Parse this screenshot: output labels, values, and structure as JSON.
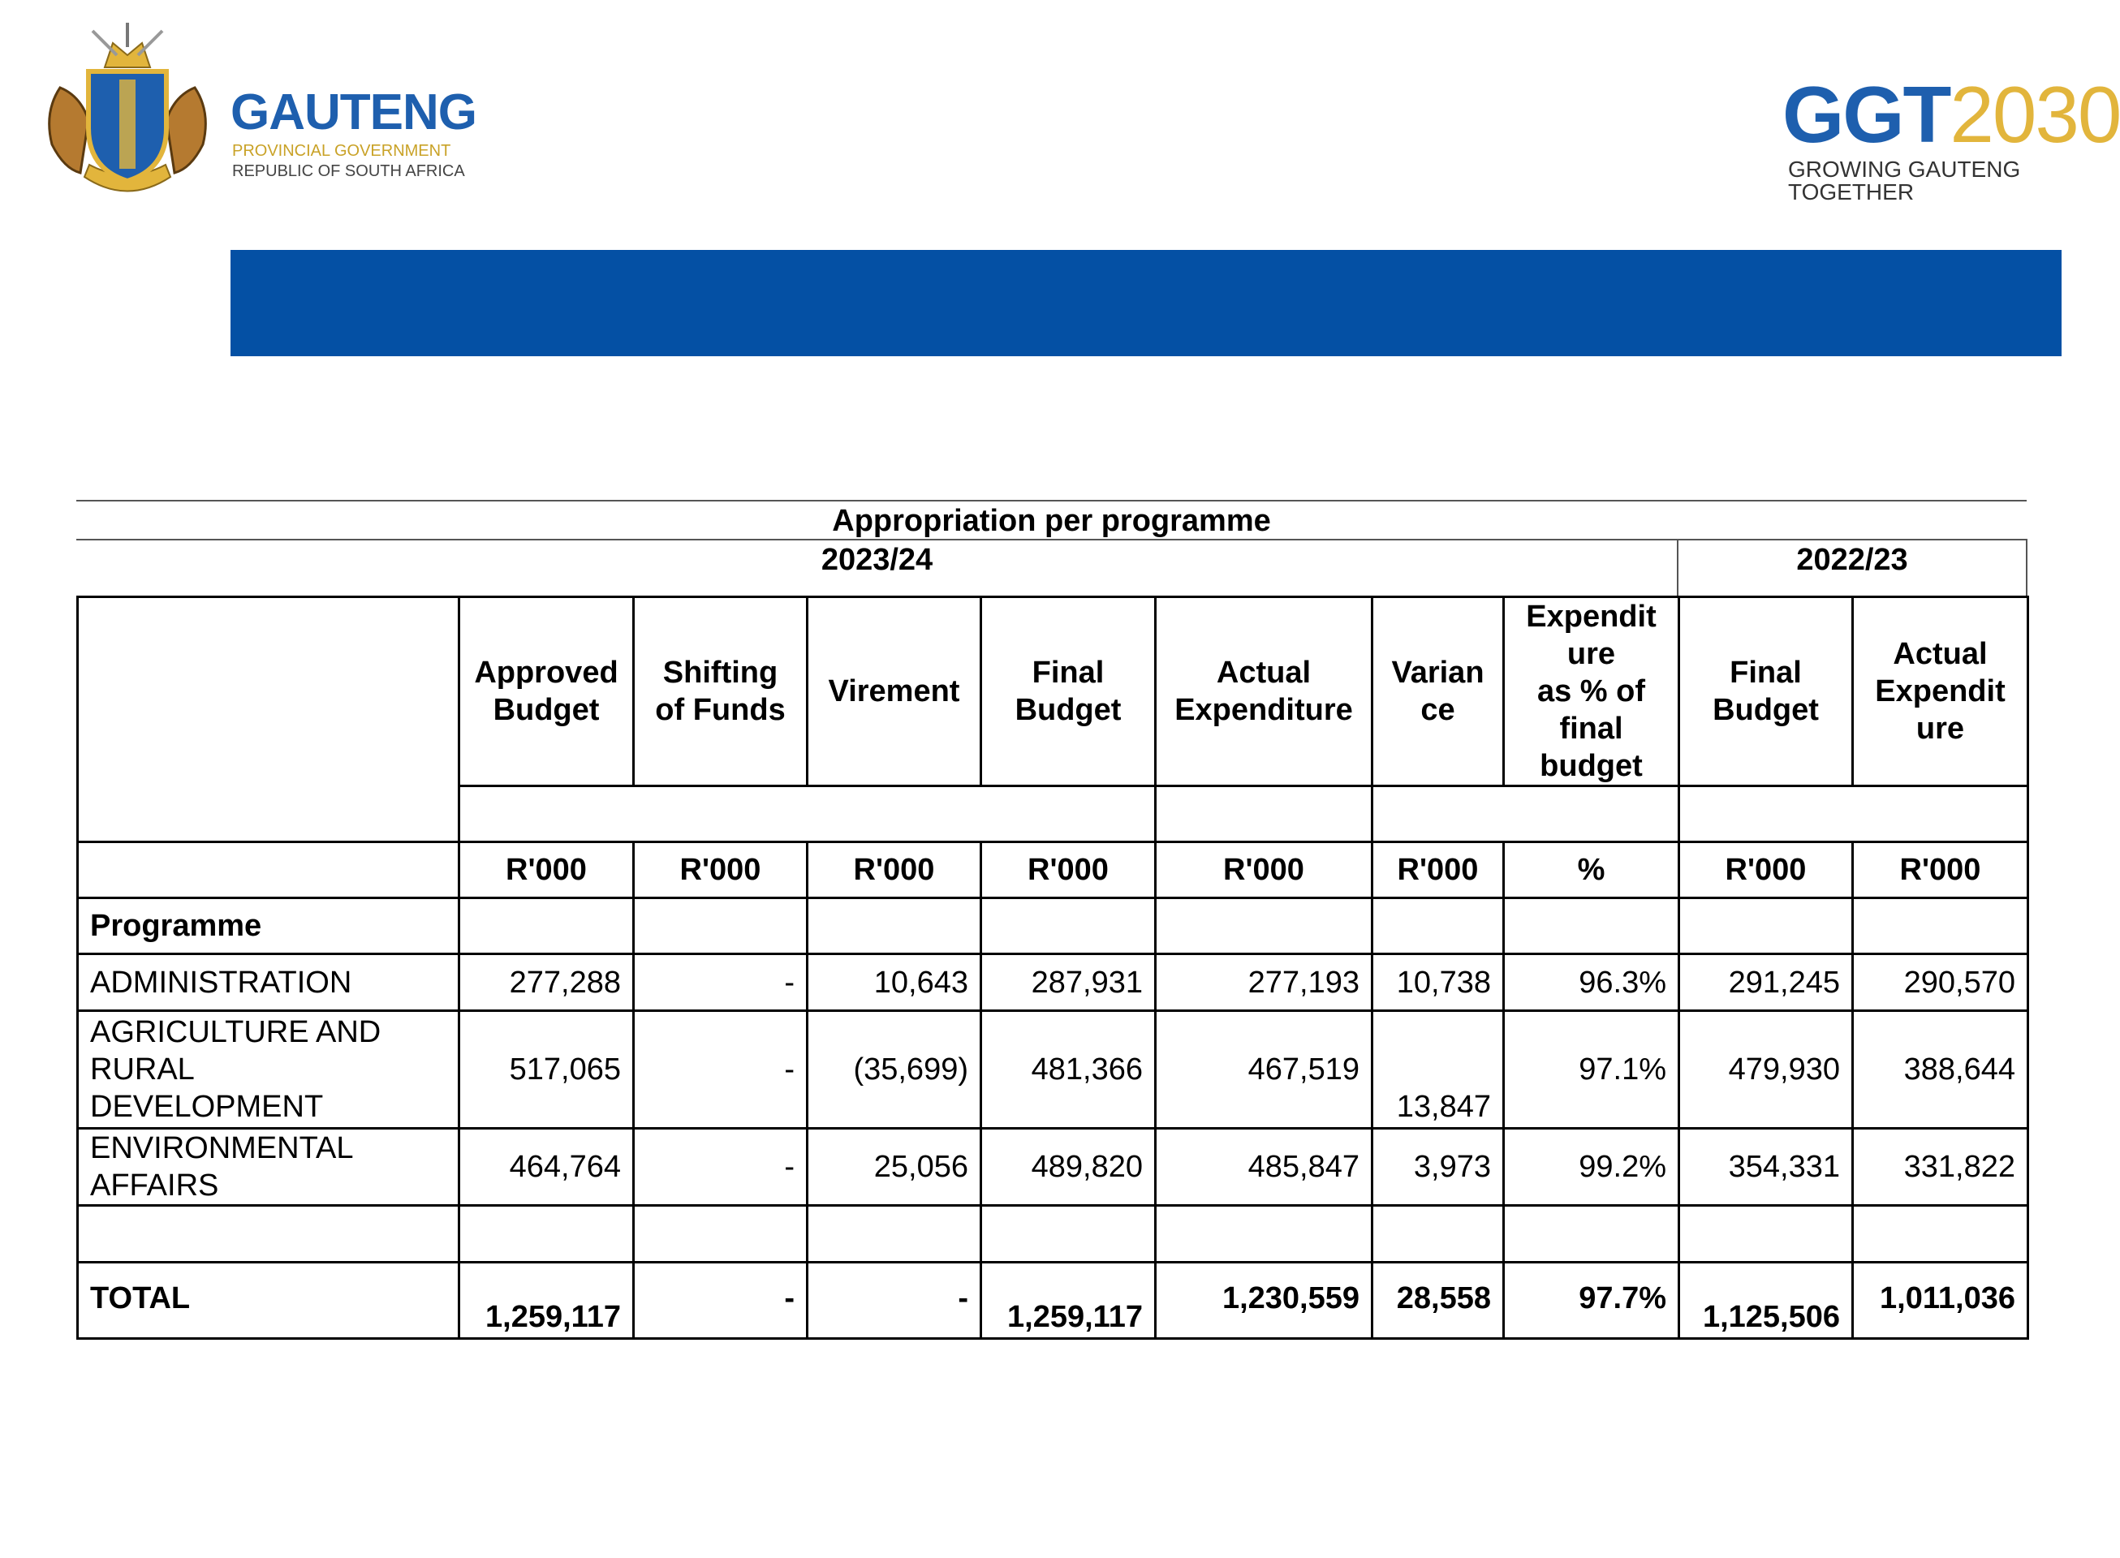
{
  "header": {
    "left_logo": {
      "name": "GAUTENG",
      "line1": "PROVINCIAL GOVERNMENT",
      "line2": "REPUBLIC OF SOUTH AFRICA"
    },
    "right_logo": {
      "prefix": "GGT",
      "year": "2030",
      "tagline": "GROWING GAUTENG TOGETHER"
    }
  },
  "table": {
    "title": "Appropriation per programme",
    "period_current": "2023/24",
    "period_prior": "2022/23",
    "columns": [
      [
        "Approved",
        "Budget"
      ],
      [
        "Shifting",
        "of Funds"
      ],
      [
        "Virement"
      ],
      [
        "Final",
        "Budget"
      ],
      [
        "Actual",
        "Expenditure"
      ],
      [
        "Varian",
        "ce"
      ],
      [
        "Expendit",
        "ure",
        "as % of",
        "final",
        "budget"
      ],
      [
        "Final",
        "Budget"
      ],
      [
        "Actual",
        "Expendit",
        "ure"
      ]
    ],
    "units": [
      "R'000",
      "R'000",
      "R'000",
      "R'000",
      "R'000",
      "R'000",
      "%",
      "R'000",
      "R'000"
    ],
    "section": "Programme",
    "rows": [
      [
        "ADMINISTRATION",
        "277,288",
        "-",
        "10,643",
        "287,931",
        "277,193",
        "10,738",
        "96.3%",
        "291,245",
        "290,570"
      ],
      [
        "AGRICULTURE AND RURAL DEVELOPMENT",
        "517,065",
        "-",
        "(35,699)",
        "481,366",
        "467,519",
        "13,847",
        "97.1%",
        "479,930",
        "388,644"
      ],
      [
        "ENVIRONMENTAL AFFAIRS",
        "464,764",
        "-",
        "25,056",
        "489,820",
        "485,847",
        "3,973",
        "99.2%",
        "354,331",
        "331,822"
      ]
    ],
    "total": [
      "TOTAL",
      "1,259,117",
      "-",
      "-",
      "1,259,117",
      "1,230,559",
      "28,558",
      "97.7%",
      "1,125,506",
      "1,011,036"
    ]
  }
}
